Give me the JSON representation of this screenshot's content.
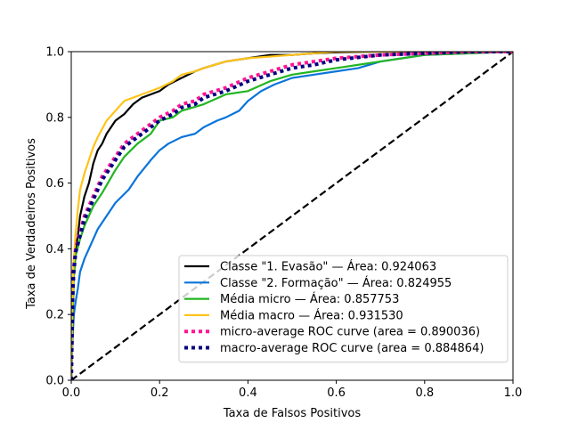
{
  "chart_data": {
    "type": "line",
    "title": "",
    "xlabel": "Taxa de Falsos Positivos",
    "ylabel": "Taxa de Verdadeiros Positivos",
    "xlim": [
      0.0,
      1.0
    ],
    "ylim": [
      0.0,
      1.0
    ],
    "xticks": [
      "0.0",
      "0.2",
      "0.4",
      "0.6",
      "0.8",
      "1.0"
    ],
    "yticks": [
      "0.0",
      "0.2",
      "0.4",
      "0.6",
      "0.8",
      "1.0"
    ],
    "grid": false,
    "legend_position": "lower-right",
    "series": [
      {
        "name": "Classe \"1. Evasão\" — Área: 0.924063",
        "color": "#000000",
        "style": "solid",
        "x": [
          0.0,
          0.002,
          0.005,
          0.01,
          0.015,
          0.02,
          0.03,
          0.04,
          0.05,
          0.06,
          0.07,
          0.08,
          0.1,
          0.12,
          0.14,
          0.16,
          0.18,
          0.2,
          0.22,
          0.25,
          0.28,
          0.3,
          0.35,
          0.4,
          0.45,
          0.5,
          0.55,
          0.6,
          0.7,
          0.8,
          0.9,
          1.0
        ],
        "y": [
          0.0,
          0.1,
          0.3,
          0.4,
          0.44,
          0.5,
          0.56,
          0.6,
          0.66,
          0.7,
          0.72,
          0.75,
          0.79,
          0.81,
          0.84,
          0.86,
          0.87,
          0.88,
          0.9,
          0.92,
          0.94,
          0.95,
          0.97,
          0.98,
          0.99,
          0.99,
          0.995,
          0.998,
          1.0,
          1.0,
          1.0,
          1.0
        ]
      },
      {
        "name": "Classe \"2. Formação\" — Área: 0.824955",
        "color": "#0a74da",
        "style": "solid",
        "x": [
          0.0,
          0.003,
          0.006,
          0.01,
          0.015,
          0.02,
          0.03,
          0.04,
          0.06,
          0.08,
          0.1,
          0.13,
          0.15,
          0.18,
          0.2,
          0.22,
          0.25,
          0.28,
          0.3,
          0.33,
          0.35,
          0.38,
          0.4,
          0.43,
          0.46,
          0.5,
          0.55,
          0.6,
          0.65,
          0.7,
          0.75,
          0.8,
          0.9,
          1.0
        ],
        "y": [
          0.0,
          0.13,
          0.2,
          0.24,
          0.28,
          0.33,
          0.37,
          0.4,
          0.46,
          0.5,
          0.54,
          0.58,
          0.62,
          0.67,
          0.7,
          0.72,
          0.74,
          0.75,
          0.77,
          0.79,
          0.8,
          0.82,
          0.85,
          0.88,
          0.9,
          0.92,
          0.93,
          0.94,
          0.95,
          0.97,
          0.98,
          0.99,
          0.995,
          1.0
        ]
      },
      {
        "name": "Média micro — Área: 0.857753",
        "color": "#22b522",
        "style": "solid",
        "x": [
          0.0,
          0.003,
          0.005,
          0.01,
          0.02,
          0.03,
          0.05,
          0.07,
          0.1,
          0.12,
          0.15,
          0.18,
          0.2,
          0.23,
          0.25,
          0.3,
          0.35,
          0.4,
          0.45,
          0.5,
          0.55,
          0.6,
          0.65,
          0.7,
          0.8,
          0.9,
          1.0
        ],
        "y": [
          0.0,
          0.2,
          0.3,
          0.38,
          0.43,
          0.47,
          0.53,
          0.57,
          0.64,
          0.68,
          0.72,
          0.75,
          0.79,
          0.8,
          0.82,
          0.84,
          0.87,
          0.88,
          0.91,
          0.93,
          0.94,
          0.95,
          0.96,
          0.97,
          0.99,
          0.995,
          1.0
        ]
      },
      {
        "name": "Média macro — Área: 0.931530",
        "color": "#ffc41a",
        "style": "solid",
        "x": [
          0.0,
          0.002,
          0.005,
          0.01,
          0.015,
          0.02,
          0.03,
          0.04,
          0.05,
          0.06,
          0.08,
          0.1,
          0.12,
          0.14,
          0.16,
          0.18,
          0.2,
          0.23,
          0.25,
          0.28,
          0.3,
          0.35,
          0.4,
          0.5,
          0.6,
          0.7,
          0.8,
          1.0
        ],
        "y": [
          0.0,
          0.2,
          0.35,
          0.45,
          0.52,
          0.58,
          0.63,
          0.67,
          0.71,
          0.74,
          0.79,
          0.82,
          0.85,
          0.86,
          0.87,
          0.88,
          0.89,
          0.91,
          0.93,
          0.94,
          0.95,
          0.97,
          0.98,
          0.99,
          1.0,
          1.0,
          1.0,
          1.0
        ]
      },
      {
        "name": "micro-average ROC curve (area = 0.890036)",
        "color": "#ff1493",
        "style": "dotted",
        "x": [
          0.0,
          0.003,
          0.005,
          0.01,
          0.02,
          0.03,
          0.05,
          0.07,
          0.1,
          0.12,
          0.15,
          0.18,
          0.2,
          0.23,
          0.25,
          0.28,
          0.3,
          0.35,
          0.4,
          0.45,
          0.5,
          0.55,
          0.6,
          0.7,
          0.8,
          0.9,
          1.0
        ],
        "y": [
          0.0,
          0.25,
          0.33,
          0.4,
          0.45,
          0.5,
          0.56,
          0.62,
          0.68,
          0.72,
          0.75,
          0.78,
          0.8,
          0.82,
          0.84,
          0.85,
          0.87,
          0.89,
          0.92,
          0.94,
          0.96,
          0.97,
          0.98,
          0.99,
          0.995,
          1.0,
          1.0
        ]
      },
      {
        "name": "macro-average ROC curve (area = 0.884864)",
        "color": "#000080",
        "style": "dotted",
        "x": [
          0.0,
          0.003,
          0.005,
          0.01,
          0.02,
          0.03,
          0.05,
          0.07,
          0.1,
          0.12,
          0.15,
          0.18,
          0.2,
          0.23,
          0.25,
          0.28,
          0.3,
          0.35,
          0.4,
          0.45,
          0.5,
          0.55,
          0.6,
          0.7,
          0.8,
          0.9,
          1.0
        ],
        "y": [
          0.0,
          0.24,
          0.32,
          0.39,
          0.44,
          0.49,
          0.55,
          0.61,
          0.67,
          0.71,
          0.74,
          0.77,
          0.79,
          0.81,
          0.83,
          0.84,
          0.86,
          0.88,
          0.91,
          0.93,
          0.95,
          0.96,
          0.975,
          0.99,
          0.995,
          1.0,
          1.0
        ]
      },
      {
        "name": "",
        "color": "#000000",
        "style": "dashed",
        "x": [
          0.0,
          1.0
        ],
        "y": [
          0.0,
          1.0
        ]
      }
    ]
  }
}
